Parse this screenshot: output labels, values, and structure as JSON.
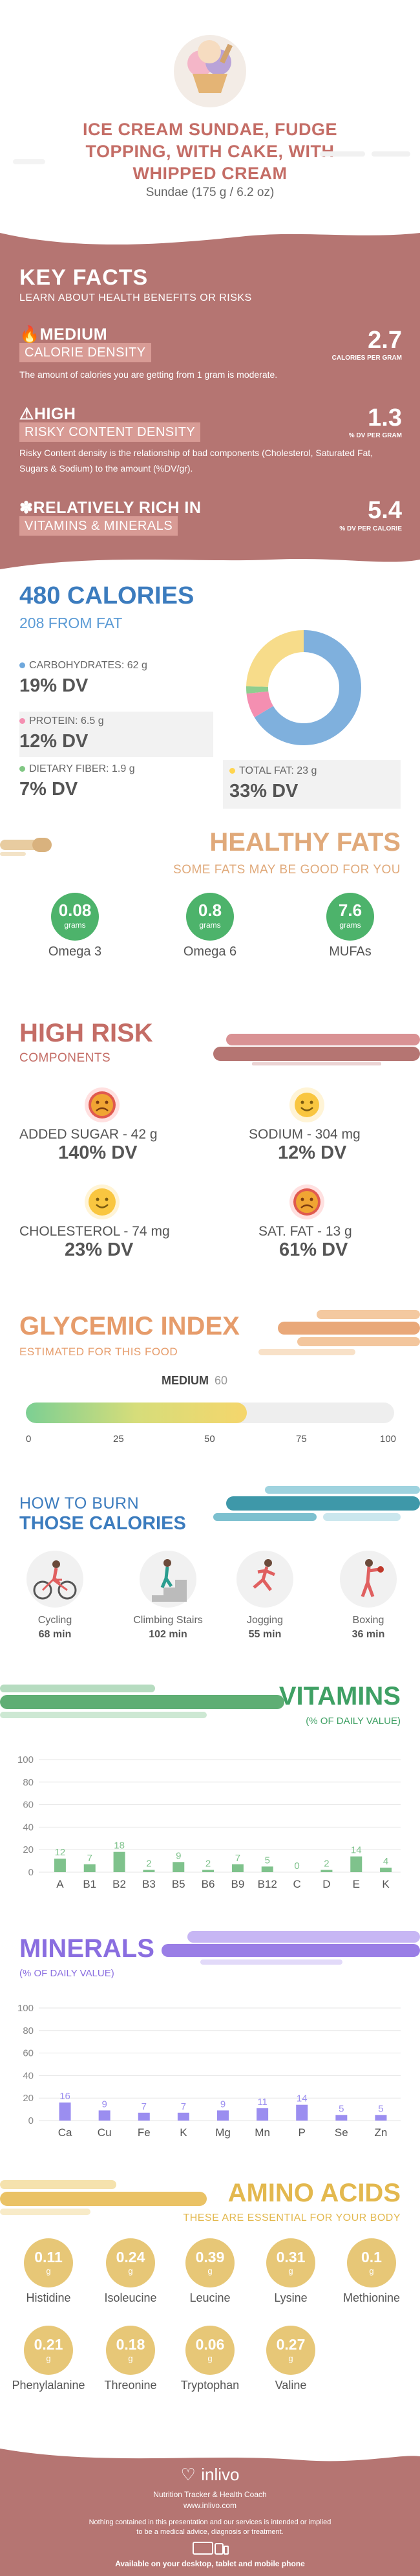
{
  "header": {
    "title_lines": [
      "ICE CREAM SUNDAE, FUDGE",
      "TOPPING, WITH CAKE, WITH",
      "WHIPPED CREAM"
    ],
    "subtitle": "Sundae (175 g / 6.2 oz)"
  },
  "key_facts": {
    "title": "KEY FACTS",
    "subtitle": "LEARN ABOUT HEALTH BENEFITS OR RISKS",
    "items": [
      {
        "level": "MEDIUM",
        "label": "CALORIE DENSITY",
        "desc": "The amount of calories you are getting from 1 gram is moderate.",
        "value": "2.7",
        "unit": "CALORIES PER GRAM"
      },
      {
        "level": "HIGH",
        "label": "RISKY CONTENT DENSITY",
        "desc": "Risky Content density is the relationship of bad components (Cholesterol, Saturated Fat, Sugars & Sodium) to the amount (%DV/gr).",
        "value": "1.3",
        "unit": "% DV PER GRAM"
      },
      {
        "level": "RELATIVELY RICH  IN",
        "label": "VITAMINS & MINERALS",
        "desc": "",
        "value": "5.4",
        "unit": "% DV PER CALORIE"
      }
    ]
  },
  "calories": {
    "title": "480 CALORIES",
    "subtitle": "208 FROM FAT",
    "cells": [
      {
        "label": "CARBOHYDRATES: 62 g",
        "value": "19% DV",
        "color": "#6fa8dc"
      },
      {
        "label": "PROTEIN: 6.5 g",
        "value": "12% DV",
        "color": "#f48fb1"
      },
      {
        "label": "DIETARY FIBER: 1.9 g",
        "value": "7% DV",
        "color": "#81c784"
      },
      {
        "label": "TOTAL FAT: 23 g",
        "value": "33% DV",
        "color": "#ffd54f"
      }
    ],
    "donut": [
      {
        "name": "carbohydrates",
        "value": 62,
        "color": "#7fb0dd"
      },
      {
        "name": "protein",
        "value": 6.5,
        "color": "#f48fb1"
      },
      {
        "name": "dietary fiber",
        "value": 1.9,
        "color": "#8fce8f"
      },
      {
        "name": "total fat",
        "value": 23,
        "color": "#f7dc8a"
      }
    ]
  },
  "healthy_fats": {
    "title": "HEALTHY FATS",
    "subtitle": "SOME FATS MAY BE GOOD FOR YOU",
    "items": [
      {
        "value": "0.08",
        "unit": "grams",
        "label": "Omega 3"
      },
      {
        "value": "0.8",
        "unit": "grams",
        "label": "Omega 6"
      },
      {
        "value": "7.6",
        "unit": "grams",
        "label": "MUFAs"
      }
    ]
  },
  "high_risk": {
    "title": "HIGH RISK",
    "subtitle": "COMPONENTS",
    "items": [
      {
        "label": "ADDED SUGAR - 42 g",
        "value": "140% DV",
        "face": "sad-red-icon"
      },
      {
        "label": "SODIUM - 304 mg",
        "value": "12% DV",
        "face": "happy-yellow-icon"
      },
      {
        "label": "CHOLESTEROL - 74 mg",
        "value": "23% DV",
        "face": "happy-yellow-icon"
      },
      {
        "label": "SAT. FAT - 13 g",
        "value": "61% DV",
        "face": "sad-red-icon"
      }
    ]
  },
  "glycemic": {
    "title": "GLYCEMIC INDEX",
    "subtitle": "ESTIMATED FOR THIS FOOD",
    "level": "MEDIUM",
    "value": "60",
    "value_num": 60,
    "ticks": [
      "0",
      "25",
      "50",
      "75",
      "100"
    ]
  },
  "burn": {
    "title1": "HOW TO BURN",
    "title2": "THOSE CALORIES",
    "items": [
      {
        "label": "Cycling",
        "time": "68 min",
        "icon": "cycling-icon"
      },
      {
        "label": "Climbing Stairs",
        "time": "102 min",
        "icon": "stairs-icon"
      },
      {
        "label": "Jogging",
        "time": "55 min",
        "icon": "jogging-icon"
      },
      {
        "label": "Boxing",
        "time": "36 min",
        "icon": "boxing-icon"
      }
    ]
  },
  "vitamins": {
    "title": "VITAMINS",
    "subtitle": "(% OF DAILY VALUE)"
  },
  "minerals": {
    "title": "MINERALS",
    "subtitle": "(% OF DAILY VALUE)"
  },
  "chart_data": [
    {
      "type": "bar",
      "title": "VITAMINS",
      "subtitle": "(% OF DAILY VALUE)",
      "categories": [
        "A",
        "B1",
        "B2",
        "B3",
        "B5",
        "B6",
        "B9",
        "B12",
        "C",
        "D",
        "E",
        "K"
      ],
      "values": [
        12,
        7,
        18,
        2,
        9,
        2,
        7,
        5,
        0,
        2,
        14,
        4
      ],
      "ylim": [
        0,
        100
      ],
      "yticks": [
        0,
        20,
        40,
        60,
        80,
        100
      ],
      "color": "#7fc28c"
    },
    {
      "type": "bar",
      "title": "MINERALS",
      "subtitle": "(% OF DAILY VALUE)",
      "categories": [
        "Ca",
        "Cu",
        "Fe",
        "K",
        "Mg",
        "Mn",
        "P",
        "Se",
        "Zn"
      ],
      "values": [
        16,
        9,
        7,
        7,
        9,
        11,
        14,
        5,
        5
      ],
      "ylim": [
        0,
        100
      ],
      "yticks": [
        0,
        20,
        40,
        60,
        80,
        100
      ],
      "color": "#9b8ef0"
    }
  ],
  "amino": {
    "title": "AMINO ACIDS",
    "subtitle": "THESE ARE ESSENTIAL FOR YOUR BODY",
    "unit": "g",
    "items": [
      {
        "value": "0.11",
        "label": "Histidine"
      },
      {
        "value": "0.24",
        "label": "Isoleucine"
      },
      {
        "value": "0.39",
        "label": "Leucine"
      },
      {
        "value": "0.31",
        "label": "Lysine"
      },
      {
        "value": "0.1",
        "label": "Methionine"
      },
      {
        "value": "0.21",
        "label": "Phenylalanine"
      },
      {
        "value": "0.18",
        "label": "Threonine"
      },
      {
        "value": "0.06",
        "label": "Tryptophan"
      },
      {
        "value": "0.27",
        "label": "Valine"
      }
    ]
  },
  "footer": {
    "brand": "inlivo",
    "tagline": "Nutrition Tracker & Health Coach",
    "url": "www.inlivo.com",
    "disclaimer1": "Nothing contained in this presentation and our services is intended or implied",
    "disclaimer2": "to be a medical advice, diagnosis or treatment.",
    "available": "Available on your desktop, tablet and mobile phone"
  }
}
